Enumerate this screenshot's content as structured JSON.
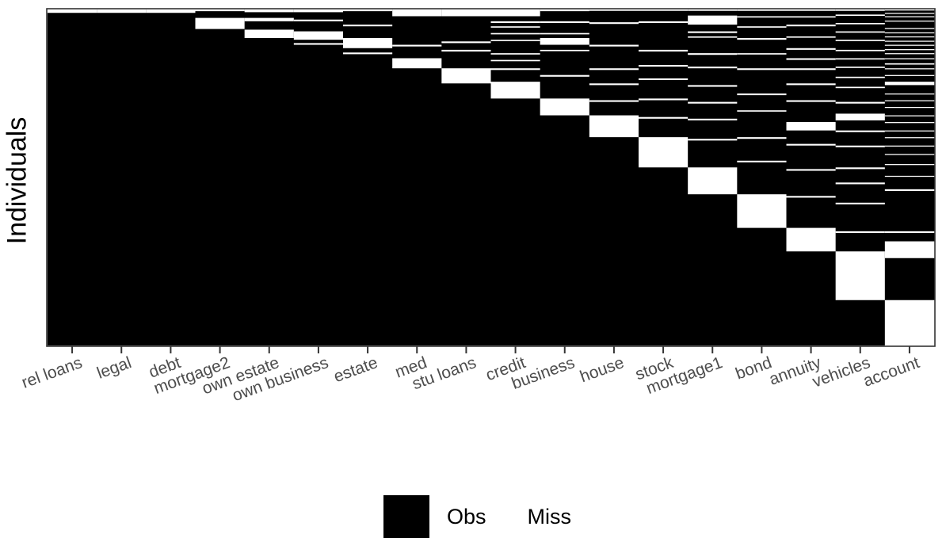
{
  "chart_data": {
    "type": "heatmap",
    "title": "",
    "xlabel": "",
    "ylabel": "Individuals",
    "legend_position": "bottom",
    "colors": {
      "Obs": "#000000",
      "Miss": "#ffffff"
    },
    "legend": [
      {
        "label": "Obs",
        "color": "#000000"
      },
      {
        "label": "Miss",
        "color": "#ffffff"
      }
    ],
    "categories": [
      "rel loans",
      "legal",
      "debt",
      "mortgage2",
      "own estate",
      "own business",
      "estate",
      "med",
      "stu loans",
      "credit",
      "business",
      "house",
      "stock",
      "mortgage1",
      "bond",
      "annuity",
      "vehicles",
      "account"
    ],
    "y_range": [
      0,
      100
    ],
    "y_note": "rows ordered by number of missing values; 0 = top",
    "missing_ranges": {
      "rel loans": [
        [
          0,
          1.0
        ]
      ],
      "legal": [
        [
          0,
          1.0
        ]
      ],
      "debt": [
        [
          0,
          1.0
        ]
      ],
      "mortgage2": [
        [
          0,
          0.5
        ],
        [
          2.5,
          5.8
        ]
      ],
      "own estate": [
        [
          0,
          0.8
        ],
        [
          2.5,
          3.5
        ],
        [
          6.0,
          8.5
        ]
      ],
      "own business": [
        [
          0,
          0.8
        ],
        [
          3.0,
          3.5
        ],
        [
          6.5,
          9.0
        ],
        [
          10.0,
          10.5
        ]
      ],
      "estate": [
        [
          0,
          0.5
        ],
        [
          4.5,
          5.0
        ],
        [
          8.5,
          11.5
        ],
        [
          12.8,
          13.3
        ]
      ],
      "med": [
        [
          0,
          2.0
        ],
        [
          10.5,
          11.0
        ],
        [
          14.5,
          17.5
        ]
      ],
      "stu loans": [
        [
          0,
          2.0
        ],
        [
          9.5,
          10.0
        ],
        [
          12.0,
          12.5
        ],
        [
          17.5,
          22.0
        ]
      ],
      "credit": [
        [
          0,
          2.0
        ],
        [
          3.5,
          4.0
        ],
        [
          5.0,
          5.4
        ],
        [
          7.0,
          7.4
        ],
        [
          9.0,
          9.4
        ],
        [
          13.0,
          13.4
        ],
        [
          15.0,
          15.4
        ],
        [
          17.5,
          18.0
        ],
        [
          21.5,
          26.5
        ]
      ],
      "business": [
        [
          0,
          0.5
        ],
        [
          3.5,
          4.0
        ],
        [
          7.0,
          7.4
        ],
        [
          8.5,
          10.5
        ],
        [
          12.0,
          12.4
        ],
        [
          19.5,
          20.0
        ],
        [
          26.5,
          31.5
        ]
      ],
      "house": [
        [
          0,
          0.4
        ],
        [
          3.8,
          4.3
        ],
        [
          10.5,
          11.0
        ],
        [
          17.5,
          18.0
        ],
        [
          22.0,
          22.5
        ],
        [
          27.0,
          27.5
        ],
        [
          31.5,
          38.0
        ]
      ],
      "stock": [
        [
          0,
          0.4
        ],
        [
          3.5,
          4.0
        ],
        [
          12.0,
          12.5
        ],
        [
          16.5,
          17.0
        ],
        [
          20.5,
          21.0
        ],
        [
          26.5,
          27.0
        ],
        [
          32.0,
          32.5
        ],
        [
          38.0,
          47.0
        ]
      ],
      "mortgage1": [
        [
          0,
          0.4
        ],
        [
          1.8,
          4.5
        ],
        [
          6.5,
          7.0
        ],
        [
          8.0,
          8.4
        ],
        [
          13.0,
          13.5
        ],
        [
          17.0,
          17.5
        ],
        [
          22.5,
          23.0
        ],
        [
          27.5,
          28.0
        ],
        [
          32.5,
          33.0
        ],
        [
          38.5,
          39.0
        ],
        [
          47.0,
          55.0
        ]
      ],
      "bond": [
        [
          0,
          0.4
        ],
        [
          2.0,
          2.4
        ],
        [
          5.0,
          5.4
        ],
        [
          8.5,
          9.0
        ],
        [
          13.0,
          13.4
        ],
        [
          17.5,
          18.0
        ],
        [
          25.0,
          25.5
        ],
        [
          30.0,
          30.4
        ],
        [
          38.0,
          38.5
        ],
        [
          45.0,
          45.5
        ],
        [
          55.0,
          65.0
        ]
      ],
      "annuity": [
        [
          0,
          0.4
        ],
        [
          2.0,
          2.4
        ],
        [
          4.5,
          5.0
        ],
        [
          8.0,
          8.4
        ],
        [
          11.5,
          12.0
        ],
        [
          14.5,
          15.0
        ],
        [
          17.5,
          18.0
        ],
        [
          22.0,
          22.5
        ],
        [
          27.0,
          27.5
        ],
        [
          33.5,
          36.0
        ],
        [
          40.0,
          40.5
        ],
        [
          47.5,
          48.0
        ],
        [
          55.5,
          56.0
        ],
        [
          65.0,
          72.0
        ]
      ],
      "vehicles": [
        [
          0,
          0.4
        ],
        [
          1.5,
          1.9
        ],
        [
          4.0,
          4.4
        ],
        [
          6.5,
          6.9
        ],
        [
          9.0,
          9.4
        ],
        [
          12.0,
          12.4
        ],
        [
          14.5,
          14.9
        ],
        [
          17.0,
          17.4
        ],
        [
          20.0,
          20.4
        ],
        [
          23.0,
          23.4
        ],
        [
          27.5,
          28.0
        ],
        [
          31.0,
          33.0
        ],
        [
          36.0,
          36.5
        ],
        [
          40.5,
          41.0
        ],
        [
          47.0,
          47.5
        ],
        [
          51.5,
          52.0
        ],
        [
          57.5,
          58.0
        ],
        [
          66.0,
          66.5
        ],
        [
          72.0,
          86.5
        ]
      ],
      "account": [
        [
          0,
          0.3
        ],
        [
          1.0,
          1.3
        ],
        [
          2.0,
          2.3
        ],
        [
          3.3,
          3.6
        ],
        [
          5.5,
          5.8
        ],
        [
          6.8,
          7.1
        ],
        [
          8.0,
          8.3
        ],
        [
          9.3,
          9.6
        ],
        [
          10.5,
          10.8
        ],
        [
          11.8,
          12.1
        ],
        [
          13.0,
          13.3
        ],
        [
          14.5,
          14.8
        ],
        [
          16.0,
          16.4
        ],
        [
          17.5,
          17.8
        ],
        [
          19.5,
          19.8
        ],
        [
          21.5,
          22.5
        ],
        [
          25.0,
          25.3
        ],
        [
          27.0,
          27.3
        ],
        [
          29.0,
          29.3
        ],
        [
          31.5,
          31.8
        ],
        [
          33.5,
          33.8
        ],
        [
          36.0,
          36.3
        ],
        [
          38.0,
          38.3
        ],
        [
          40.5,
          40.8
        ],
        [
          43.0,
          43.3
        ],
        [
          46.0,
          46.3
        ],
        [
          49.5,
          49.8
        ],
        [
          53.5,
          54.0
        ],
        [
          66.0,
          66.5
        ],
        [
          69.0,
          74.0
        ],
        [
          86.5,
          100.0
        ]
      ]
    }
  }
}
